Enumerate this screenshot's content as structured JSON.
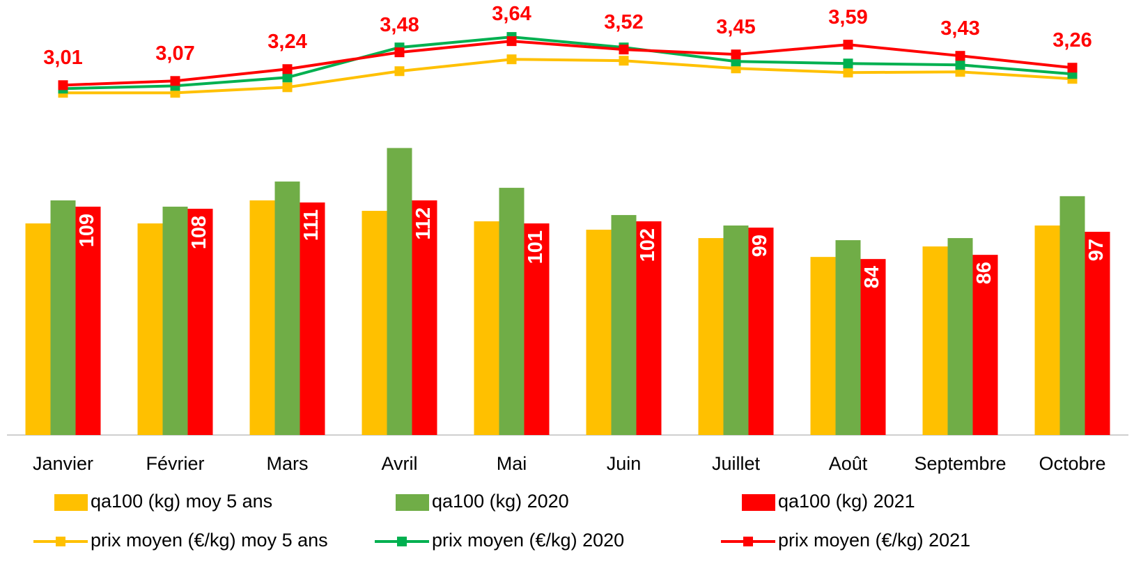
{
  "chart_data": {
    "type": "bar",
    "categories": [
      "Janvier",
      "Février",
      "Mars",
      "Avril",
      "Mai",
      "Juin",
      "Juillet",
      "Août",
      "Septembre",
      "Octobre"
    ],
    "ylim": [
      0,
      200
    ],
    "y2lim": [
      -2,
      4
    ],
    "series": [
      {
        "name": "qa100 (kg) moy 5 ans",
        "type": "bar",
        "color": "#ffc000",
        "values": [
          101,
          101,
          112,
          107,
          102,
          98,
          94,
          85,
          90,
          100
        ]
      },
      {
        "name": "qa100 (kg) 2020",
        "type": "bar",
        "color": "#70ad47",
        "values": [
          112,
          109,
          121,
          137,
          118,
          105,
          100,
          93,
          94,
          114
        ]
      },
      {
        "name": "qa100 (kg) 2021",
        "type": "bar",
        "color": "#ff0000",
        "values": [
          109,
          108,
          111,
          112,
          101,
          102,
          99,
          84,
          86,
          97
        ],
        "labels": true
      },
      {
        "name": "prix moyen (€/kg) moy 5 ans",
        "type": "line",
        "axis": "y2",
        "color": "#ffc000",
        "values": [
          2.9,
          2.9,
          2.98,
          3.21,
          3.38,
          3.36,
          3.25,
          3.19,
          3.2,
          3.1
        ]
      },
      {
        "name": "prix moyen (€/kg) 2020",
        "type": "line",
        "axis": "y2",
        "color": "#00b050",
        "values": [
          2.96,
          3.0,
          3.12,
          3.55,
          3.7,
          3.55,
          3.35,
          3.32,
          3.3,
          3.17
        ]
      },
      {
        "name": "prix moyen (€/kg) 2021",
        "type": "line",
        "axis": "y2",
        "color": "#ff0000",
        "values": [
          3.01,
          3.07,
          3.24,
          3.48,
          3.64,
          3.52,
          3.45,
          3.59,
          3.43,
          3.26
        ],
        "value_labels": [
          "3,01",
          "3,07",
          "3,24",
          "3,48",
          "3,64",
          "3,52",
          "3,45",
          "3,59",
          "3,43",
          "3,26"
        ]
      }
    ]
  }
}
